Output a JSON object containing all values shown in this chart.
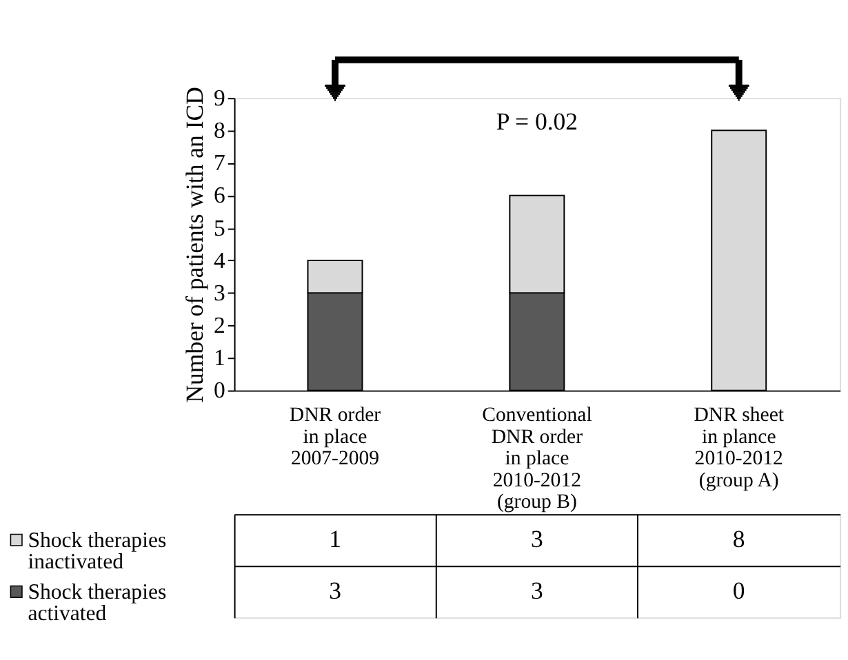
{
  "chart_data": {
    "type": "bar",
    "stacked": true,
    "categories": [
      "DNR order\nin place\n2007-2009",
      "Conventional\nDNR order\nin place\n2010-2012\n(group B)",
      "DNR sheet\nin plance\n2010-2012\n(group A)"
    ],
    "series": [
      {
        "name": "Shock therapies\nactivated",
        "color": "#595959",
        "values": [
          3,
          3,
          0
        ]
      },
      {
        "name": "Shock therapies\ninactivated",
        "color": "#d9d9d9",
        "values": [
          1,
          3,
          8
        ]
      }
    ],
    "ylabel": "Number of patients with an ICD",
    "ylim": [
      0,
      9
    ],
    "yticks": [
      0,
      1,
      2,
      3,
      4,
      5,
      6,
      7,
      8,
      9
    ],
    "annotations": [
      "P = 0.02"
    ],
    "data_labels": true,
    "legend": "bottom left",
    "grid": false
  }
}
